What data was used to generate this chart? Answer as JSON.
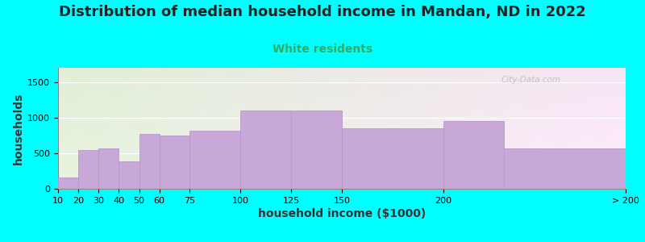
{
  "title": "Distribution of median household income in Mandan, ND in 2022",
  "subtitle": "White residents",
  "xlabel": "household income ($1000)",
  "ylabel": "households",
  "background_color": "#00FFFF",
  "bar_color": "#C8A8D8",
  "bar_edge_color": "#B898C8",
  "values": [
    155,
    545,
    570,
    380,
    775,
    745,
    820,
    1105,
    1105,
    855,
    950,
    565
  ],
  "edges": [
    10,
    20,
    30,
    40,
    50,
    60,
    75,
    100,
    125,
    150,
    200,
    230,
    290
  ],
  "tick_positions": [
    10,
    20,
    30,
    40,
    50,
    60,
    75,
    100,
    125,
    150,
    200,
    290
  ],
  "tick_labels": [
    "10",
    "20",
    "30",
    "40",
    "50",
    "60",
    "75",
    "100",
    "125",
    "150",
    "200",
    "> 200"
  ],
  "ylim": [
    0,
    1700
  ],
  "yticks": [
    0,
    500,
    1000,
    1500
  ],
  "title_fontsize": 13,
  "subtitle_fontsize": 10,
  "subtitle_color": "#33AA66",
  "axis_label_fontsize": 10,
  "tick_fontsize": 8,
  "watermark_text": "City-Data.com"
}
